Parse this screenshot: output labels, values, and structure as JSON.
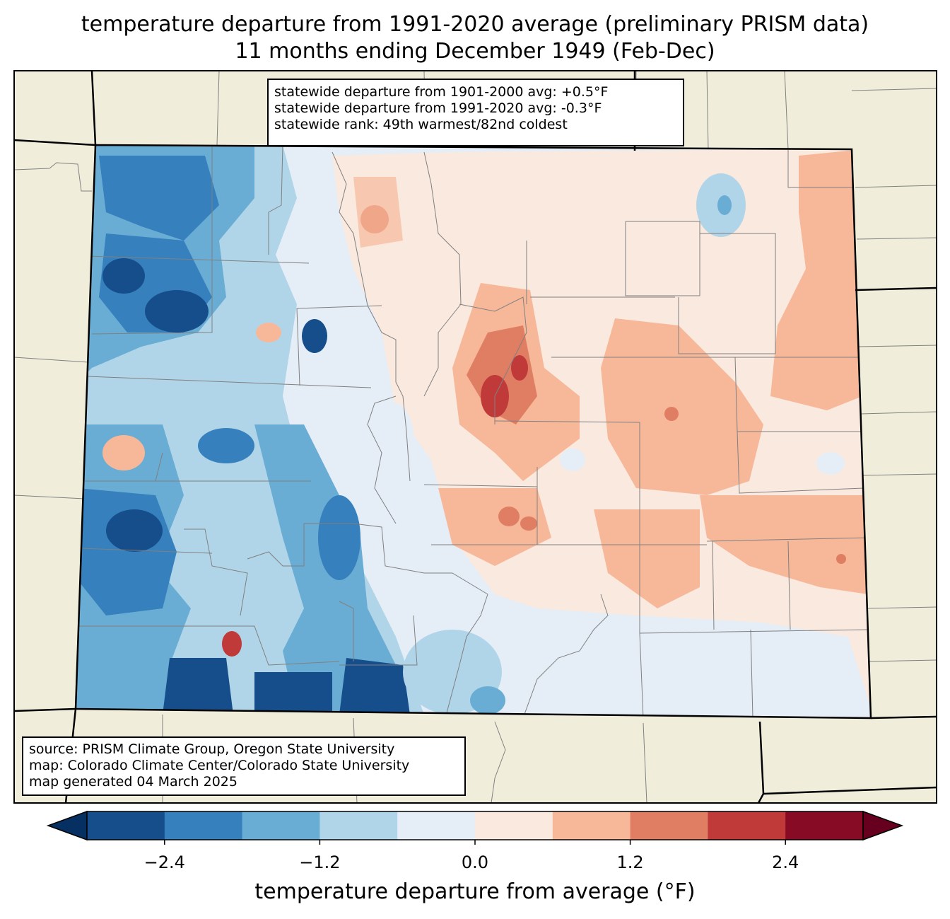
{
  "title": {
    "line1": "temperature departure from 1991-2020 average (preliminary PRISM data)",
    "line2": "11 months ending December 1949 (Feb-Dec)"
  },
  "stats": {
    "line1": "statewide departure from 1901-2000 avg: +0.5°F",
    "line2": "statewide departure from 1991-2020 avg: -0.3°F",
    "line3": "statewide rank: 49th warmest/82nd coldest"
  },
  "source": {
    "line1": "source: PRISM Climate Group, Oregon State University",
    "line2": "map: Colorado Climate Center/Colorado State University",
    "line3": "map generated 04 March 2025"
  },
  "colorbar": {
    "label": "temperature departure from average (°F)",
    "ticks": [
      "−2.4",
      "−1.2",
      "0.0",
      "1.2",
      "2.4"
    ],
    "tick_values": [
      -2.4,
      -1.2,
      0.0,
      1.2,
      2.4
    ],
    "min": -3.0,
    "max": 3.0,
    "colors": [
      "#053061",
      "#164d8b",
      "#3580bd",
      "#6aadd4",
      "#b1d5e8",
      "#e5eef6",
      "#fae9df",
      "#f7b89a",
      "#e07e63",
      "#c03a3a",
      "#880b25",
      "#67001f"
    ]
  },
  "map_colors": {
    "land": "#f0eedb",
    "state_border": "#000000",
    "county_border": "#808080"
  }
}
